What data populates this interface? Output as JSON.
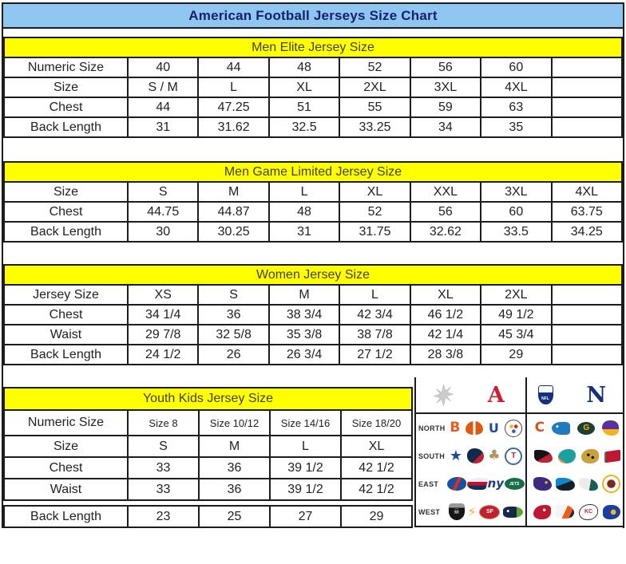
{
  "title": "American Football Jerseys Size Chart",
  "colors": {
    "title_bar_bg": "#8fc6f0",
    "title_text": "#16206e",
    "section_band_bg": "#ffff00",
    "border": "#1c1c1c",
    "afc_red": "#d02030",
    "nfc_blue": "#15317c"
  },
  "tables": {
    "men_elite": {
      "heading": "Men Elite Jersey Size",
      "rows": [
        {
          "label": "Numeric Size",
          "values": [
            "40",
            "44",
            "48",
            "52",
            "56",
            "60",
            ""
          ]
        },
        {
          "label": "Size",
          "values": [
            "S / M",
            "L",
            "XL",
            "2XL",
            "3XL",
            "4XL",
            ""
          ]
        },
        {
          "label": "Chest",
          "values": [
            "44",
            "47.25",
            "51",
            "55",
            "59",
            "63",
            ""
          ]
        },
        {
          "label": "Back Length",
          "values": [
            "31",
            "31.62",
            "32.5",
            "33.25",
            "34",
            "35",
            ""
          ]
        }
      ]
    },
    "men_game": {
      "heading": "Men Game Limited Jersey Size",
      "rows": [
        {
          "label": "Size",
          "values": [
            "S",
            "M",
            "L",
            "XL",
            "XXL",
            "3XL",
            "4XL"
          ]
        },
        {
          "label": "Chest",
          "values": [
            "44.75",
            "44.87",
            "48",
            "52",
            "56",
            "60",
            "63.75"
          ]
        },
        {
          "label": "Back Length",
          "values": [
            "30",
            "30.25",
            "31",
            "31.75",
            "32.62",
            "33.5",
            "34.25"
          ]
        }
      ]
    },
    "women": {
      "heading": "Women Jersey Size",
      "rows": [
        {
          "label": "Jersey Size",
          "values": [
            "XS",
            "S",
            "M",
            "L",
            "XL",
            "2XL",
            ""
          ]
        },
        {
          "label": "Chest",
          "values": [
            "34 1/4",
            "36",
            "38 3/4",
            "42 3/4",
            "46 1/2",
            "49 1/2",
            ""
          ]
        },
        {
          "label": "Waist",
          "values": [
            "29 7/8",
            "32 5/8",
            "35 3/8",
            "38 7/8",
            "42 1/4",
            "45 3/4",
            ""
          ]
        },
        {
          "label": "Back Length",
          "values": [
            "24 1/2",
            "26",
            "26 3/4",
            "27 1/2",
            "28 3/8",
            "29",
            ""
          ]
        }
      ]
    },
    "youth": {
      "heading": "Youth Kids Jersey Size",
      "rows": [
        {
          "label": "Numeric Size",
          "small": true,
          "values": [
            "Size 8",
            "Size 10/12",
            "Size 14/16",
            "Size 18/20"
          ]
        },
        {
          "label": "Size",
          "values": [
            "S",
            "M",
            "L",
            "XL"
          ]
        },
        {
          "label": "Chest",
          "values": [
            "33",
            "36",
            "39 1/2",
            "42 1/2"
          ]
        },
        {
          "label": "Waist",
          "values": [
            "33",
            "36",
            "39 1/2",
            "42 1/2"
          ]
        },
        {
          "label": "Back Length",
          "gap_before": true,
          "values": [
            "23",
            "25",
            "27",
            "29"
          ]
        }
      ]
    }
  },
  "logo_panel": {
    "afc_label": "A",
    "nfl_label": "NFL",
    "nfc_label": "N",
    "header_icons": [
      "starburst",
      "afc-logo",
      "nfl-shield",
      "nfc-logo"
    ],
    "divisions": [
      {
        "label": "NORTH",
        "afc": [
          "Bengals",
          "Browns",
          "Colts",
          "Steelers"
        ],
        "nfc": [
          "Bears",
          "Lions",
          "Packers",
          "Vikings"
        ]
      },
      {
        "label": "SOUTH",
        "afc": [
          "Cowboys",
          "Texans",
          "Saints",
          "Titans"
        ],
        "nfc": [
          "Falcons",
          "Dolphins",
          "Jaguars",
          "Buccaneers"
        ]
      },
      {
        "label": "EAST",
        "afc": [
          "Bills",
          "Patriots",
          "Giants",
          "Jets"
        ],
        "nfc": [
          "Ravens",
          "Panthers",
          "Eagles",
          "Redskins"
        ]
      },
      {
        "label": "WEST",
        "afc": [
          "Raiders",
          "Chargers",
          "49ers",
          "Seahawks"
        ],
        "nfc": [
          "Cardinals",
          "Broncos",
          "Chiefs",
          "Rams"
        ]
      }
    ]
  }
}
